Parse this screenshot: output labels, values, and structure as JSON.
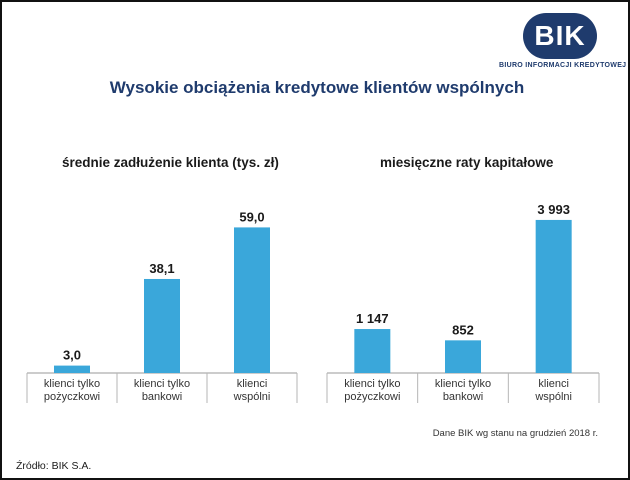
{
  "logo": {
    "text": "BIK",
    "subtitle": "BIURO INFORMACJI KREDYTOWEJ",
    "color": "#1f3b6d"
  },
  "title": "Wysokie obciążenia kredytowe klientów wspólnych",
  "bar_color": "#3aa7da",
  "chart_data": [
    {
      "type": "bar",
      "title": "średnie zadłużenie klienta (tys. zł)",
      "categories": [
        [
          "klienci tylko",
          "pożyczkowi"
        ],
        [
          "klienci tylko",
          "bankowi"
        ],
        [
          "klienci",
          "wspólni"
        ]
      ],
      "values": [
        3.0,
        38.1,
        59.0
      ],
      "value_labels": [
        "3,0",
        "38,1",
        "59,0"
      ],
      "ylim": [
        0,
        62
      ]
    },
    {
      "type": "bar",
      "title": "miesięczne raty kapitałowe",
      "categories": [
        [
          "klienci tylko",
          "pożyczkowi"
        ],
        [
          "klienci tylko",
          "bankowi"
        ],
        [
          "klienci",
          "wspólni"
        ]
      ],
      "values": [
        1147,
        852,
        3993
      ],
      "value_labels": [
        "1 147",
        "852",
        "3 993"
      ],
      "ylim": [
        0,
        4200
      ]
    }
  ],
  "note": "Dane BIK wg stanu na grudzień 2018 r.",
  "source": "Źródło: BIK S.A."
}
